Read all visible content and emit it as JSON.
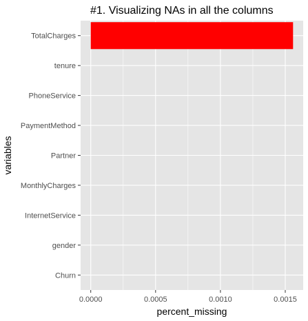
{
  "chart_data": {
    "type": "bar",
    "orientation": "horizontal",
    "title": "#1. Visualizing NAs in all the columns",
    "xlabel": "percent_missing",
    "ylabel": "variables",
    "categories": [
      "TotalCharges",
      "tenure",
      "PhoneService",
      "PaymentMethod",
      "Partner",
      "MonthlyCharges",
      "InternetService",
      "gender",
      "Churn"
    ],
    "values": [
      0.00156,
      0,
      0,
      0,
      0,
      0,
      0,
      0,
      0
    ],
    "xlim": [
      -7.81e-05,
      0.0016381
    ],
    "xticks": [
      0,
      0.0005,
      0.001,
      0.0015
    ],
    "xtick_labels": [
      "0.0000",
      "0.0005",
      "0.0010",
      "0.0015"
    ],
    "bar_color": "#ff0000",
    "panel_background": "#e5e5e5",
    "grid_color": "#ffffff",
    "grid": true,
    "legend": "none"
  }
}
